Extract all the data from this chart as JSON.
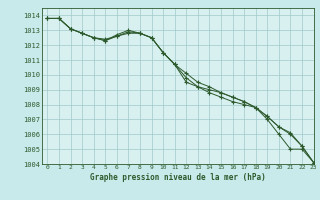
{
  "title": "Graphe pression niveau de la mer (hPa)",
  "background_color": "#c8eaea",
  "plot_bg_color": "#d8f0f0",
  "grid_color": "#a0c8c8",
  "line_color": "#2d5a2d",
  "xlim": [
    -0.5,
    23
  ],
  "ylim": [
    1004,
    1014.5
  ],
  "xticks": [
    0,
    1,
    2,
    3,
    4,
    5,
    6,
    7,
    8,
    9,
    10,
    11,
    12,
    13,
    14,
    15,
    16,
    17,
    18,
    19,
    20,
    21,
    22,
    23
  ],
  "yticks": [
    1004,
    1005,
    1006,
    1007,
    1008,
    1009,
    1010,
    1011,
    1012,
    1013,
    1014
  ],
  "series": [
    [
      1013.8,
      1013.8,
      1013.1,
      1012.8,
      1012.5,
      1012.3,
      1012.6,
      1012.9,
      1012.8,
      1012.5,
      1011.5,
      1010.7,
      1010.1,
      1009.5,
      1009.2,
      1008.8,
      1008.5,
      1008.2,
      1007.8,
      1007.0,
      1006.0,
      1005.0,
      1005.0,
      1004.1
    ],
    [
      1013.8,
      1013.8,
      1013.1,
      1012.8,
      1012.5,
      1012.3,
      1012.7,
      1013.0,
      1012.8,
      1012.5,
      1011.5,
      1010.7,
      1009.5,
      1009.2,
      1008.8,
      1008.5,
      1008.2,
      1008.0,
      1007.8,
      1007.2,
      1006.5,
      1006.1,
      1005.2,
      1004.1
    ],
    [
      1013.8,
      1013.8,
      1013.1,
      1012.8,
      1012.5,
      1012.4,
      1012.6,
      1012.8,
      1012.8,
      1012.5,
      1011.5,
      1010.7,
      1009.8,
      1009.2,
      1009.0,
      1008.8,
      1008.5,
      1008.2,
      1007.8,
      1007.2,
      1006.5,
      1006.0,
      1005.2,
      1004.1
    ]
  ]
}
